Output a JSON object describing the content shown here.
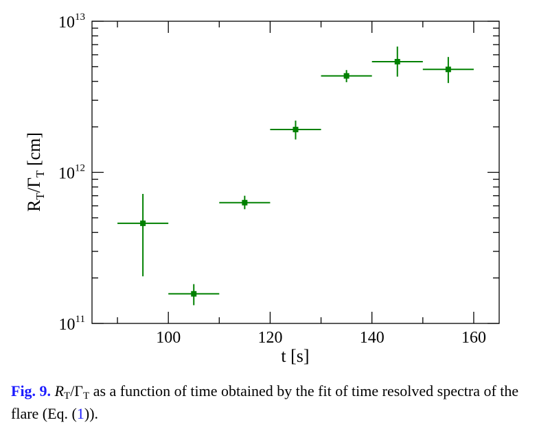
{
  "chart_data": {
    "type": "scatter",
    "xlabel": "t [s]",
    "ylabel": {
      "main": "R",
      "sub1": "T",
      "slash": "/Γ",
      "sub2": "T",
      "unit": " [cm]"
    },
    "xlim": [
      85,
      165
    ],
    "ylim": [
      100000000000.0,
      10000000000000.0
    ],
    "yscale": "log",
    "x_ticks": [
      100,
      120,
      140,
      160
    ],
    "x_minor_ticks": [
      90,
      110,
      130,
      150
    ],
    "y_ticks": [
      {
        "value": 100000000000.0,
        "base": "10",
        "exp": "11"
      },
      {
        "value": 1000000000000.0,
        "base": "10",
        "exp": "12"
      },
      {
        "value": 10000000000000.0,
        "base": "10",
        "exp": "13"
      }
    ],
    "grid": false,
    "marker_color": "#008000",
    "points": [
      {
        "x": 95,
        "y": 460000000000.0,
        "x_err": 5,
        "y_low": 205000000000.0,
        "y_high": 720000000000.0
      },
      {
        "x": 105,
        "y": 157000000000.0,
        "x_err": 5,
        "y_low": 132000000000.0,
        "y_high": 182000000000.0
      },
      {
        "x": 115,
        "y": 630000000000.0,
        "x_err": 5,
        "y_low": 570000000000.0,
        "y_high": 700000000000.0
      },
      {
        "x": 125,
        "y": 1920000000000.0,
        "x_err": 5,
        "y_low": 1650000000000.0,
        "y_high": 2200000000000.0
      },
      {
        "x": 135,
        "y": 4350000000000.0,
        "x_err": 5,
        "y_low": 3950000000000.0,
        "y_high": 4750000000000.0
      },
      {
        "x": 145,
        "y": 5400000000000.0,
        "x_err": 5,
        "y_low": 4300000000000.0,
        "y_high": 6800000000000.0
      },
      {
        "x": 155,
        "y": 4800000000000.0,
        "x_err": 5,
        "y_low": 3900000000000.0,
        "y_high": 5800000000000.0
      }
    ]
  },
  "caption": {
    "label": "Fig. 9.",
    "r": "R",
    "sub1": "T",
    "slash": "/Γ",
    "sub2": "T",
    "text1": " as a function of time obtained by the fit of time resolved spectra of the flare (Eq. (",
    "eq_ref": "1",
    "text2": "))."
  }
}
